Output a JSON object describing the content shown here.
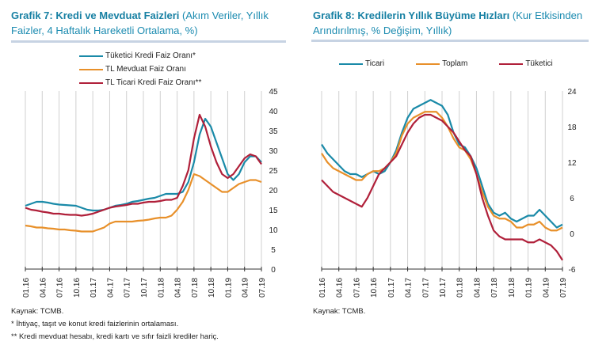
{
  "chart_data": [
    {
      "type": "line",
      "title_bold": "Grafik 7: Kredi ve Mevduat Faizleri",
      "title_rest": "(Akım Veriler, Yıllık Faizler, 4 Haftalık Hareketli Ortalama, %)",
      "x_ticks": [
        "01.16",
        "04.16",
        "07.16",
        "10.16",
        "01.17",
        "04.17",
        "07.17",
        "10.17",
        "01.18",
        "04.18",
        "07.18",
        "10.18",
        "01.19",
        "04.19",
        "07.19"
      ],
      "ylim": [
        0,
        45
      ],
      "y_ticks": [
        0,
        5,
        10,
        15,
        20,
        25,
        30,
        35,
        40,
        45
      ],
      "y_axis": "right",
      "legend": "top",
      "series": [
        {
          "name": "Tüketici Kredi Faiz Oranı*",
          "color": "#1a8aa8",
          "values": [
            16,
            16.5,
            17,
            17,
            16.8,
            16.5,
            16.3,
            16.2,
            16.1,
            16,
            15.5,
            15,
            14.8,
            14.8,
            15,
            15.5,
            16,
            16.2,
            16.5,
            17,
            17.2,
            17.5,
            17.8,
            18,
            18.5,
            19,
            19,
            19,
            19.5,
            22,
            27,
            34,
            38,
            36,
            32,
            28,
            24,
            22.5,
            24,
            27,
            28.5,
            28.5,
            27
          ]
        },
        {
          "name": "TL Mevduat Faiz Oranı",
          "color": "#e8902a",
          "values": [
            11,
            10.8,
            10.5,
            10.5,
            10.3,
            10.2,
            10,
            10,
            9.8,
            9.7,
            9.5,
            9.5,
            9.5,
            10,
            10.5,
            11.5,
            12,
            12,
            12,
            12,
            12.2,
            12.3,
            12.5,
            12.8,
            13,
            13,
            13.5,
            15,
            17,
            20,
            24,
            23.5,
            22.5,
            21.5,
            20.5,
            19.5,
            19.5,
            20.5,
            21.5,
            22,
            22.5,
            22.5,
            22
          ]
        },
        {
          "name": "TL Ticari Kredi Faiz Oranı**",
          "color": "#b0203a",
          "values": [
            15.5,
            15,
            14.8,
            14.5,
            14.3,
            14,
            14,
            13.8,
            13.7,
            13.7,
            13.5,
            13.7,
            14,
            14.5,
            15,
            15.5,
            15.8,
            16,
            16.2,
            16.5,
            16.5,
            16.8,
            17,
            17,
            17.2,
            17.5,
            17.5,
            18,
            21,
            25,
            33,
            39,
            36,
            31,
            27,
            24,
            23,
            24,
            26,
            28,
            29,
            28.5,
            26.5
          ]
        }
      ],
      "notes": [
        "Kaynak: TCMB.",
        "* İhtiyaç, taşıt ve konut kredi faizlerinin ortalaması.",
        "** Kredi mevduat hesabı, kredi kartı ve sıfır faizli krediler hariç."
      ]
    },
    {
      "type": "line",
      "title_bold": "Grafik 8: Kredilerin Yıllık Büyüme Hızları",
      "title_rest": "(Kur Etkisinden Arındırılmış, % Değişim, Yıllık)",
      "x_ticks": [
        "01.16",
        "04.16",
        "07.16",
        "10.16",
        "01.17",
        "04.17",
        "07.17",
        "10.17",
        "01.18",
        "04.18",
        "07.18",
        "10.18",
        "01.19",
        "04.19",
        "07.19"
      ],
      "ylim": [
        -6,
        24
      ],
      "y_ticks": [
        -6,
        0,
        6,
        12,
        18,
        24
      ],
      "y_axis": "right",
      "legend": "top",
      "series": [
        {
          "name": "Ticari",
          "color": "#1a8aa8",
          "values": [
            15,
            13.5,
            12.5,
            11.5,
            10.5,
            10,
            10,
            9.5,
            10,
            10.5,
            10,
            10.5,
            12,
            14,
            17,
            19.5,
            21,
            21.5,
            22,
            22.5,
            22,
            21.5,
            20,
            17,
            15,
            14.5,
            13,
            11,
            8,
            5,
            3.5,
            3,
            3.5,
            2.5,
            2,
            2.5,
            3,
            3,
            4,
            3,
            2,
            1,
            1.5
          ]
        },
        {
          "name": "Toplam",
          "color": "#e8902a",
          "values": [
            13.5,
            12,
            11,
            10.5,
            10,
            9.5,
            9,
            9,
            10,
            10.5,
            10.5,
            11,
            12,
            13.5,
            16.5,
            18.5,
            19.5,
            20,
            20.5,
            20.5,
            20.5,
            19.5,
            18,
            16,
            14.5,
            14,
            12.5,
            10,
            7,
            4.5,
            3,
            2.5,
            2.5,
            2,
            1,
            1,
            1.5,
            1.5,
            2,
            1,
            0.5,
            0.5,
            1
          ]
        },
        {
          "name": "Tüketici",
          "color": "#b0203a",
          "values": [
            9,
            8,
            7,
            6.5,
            6,
            5.5,
            5,
            4.5,
            6,
            8,
            10,
            11,
            12,
            13,
            15,
            17,
            18.5,
            19.5,
            20,
            20,
            19.5,
            19,
            18,
            17,
            15.5,
            14,
            13,
            10,
            6,
            3,
            0.5,
            -0.5,
            -1,
            -1,
            -1,
            -1,
            -1.5,
            -1.5,
            -1,
            -1.5,
            -2,
            -3,
            -4.5
          ]
        }
      ],
      "notes": [
        "Kaynak: TCMB."
      ]
    }
  ]
}
